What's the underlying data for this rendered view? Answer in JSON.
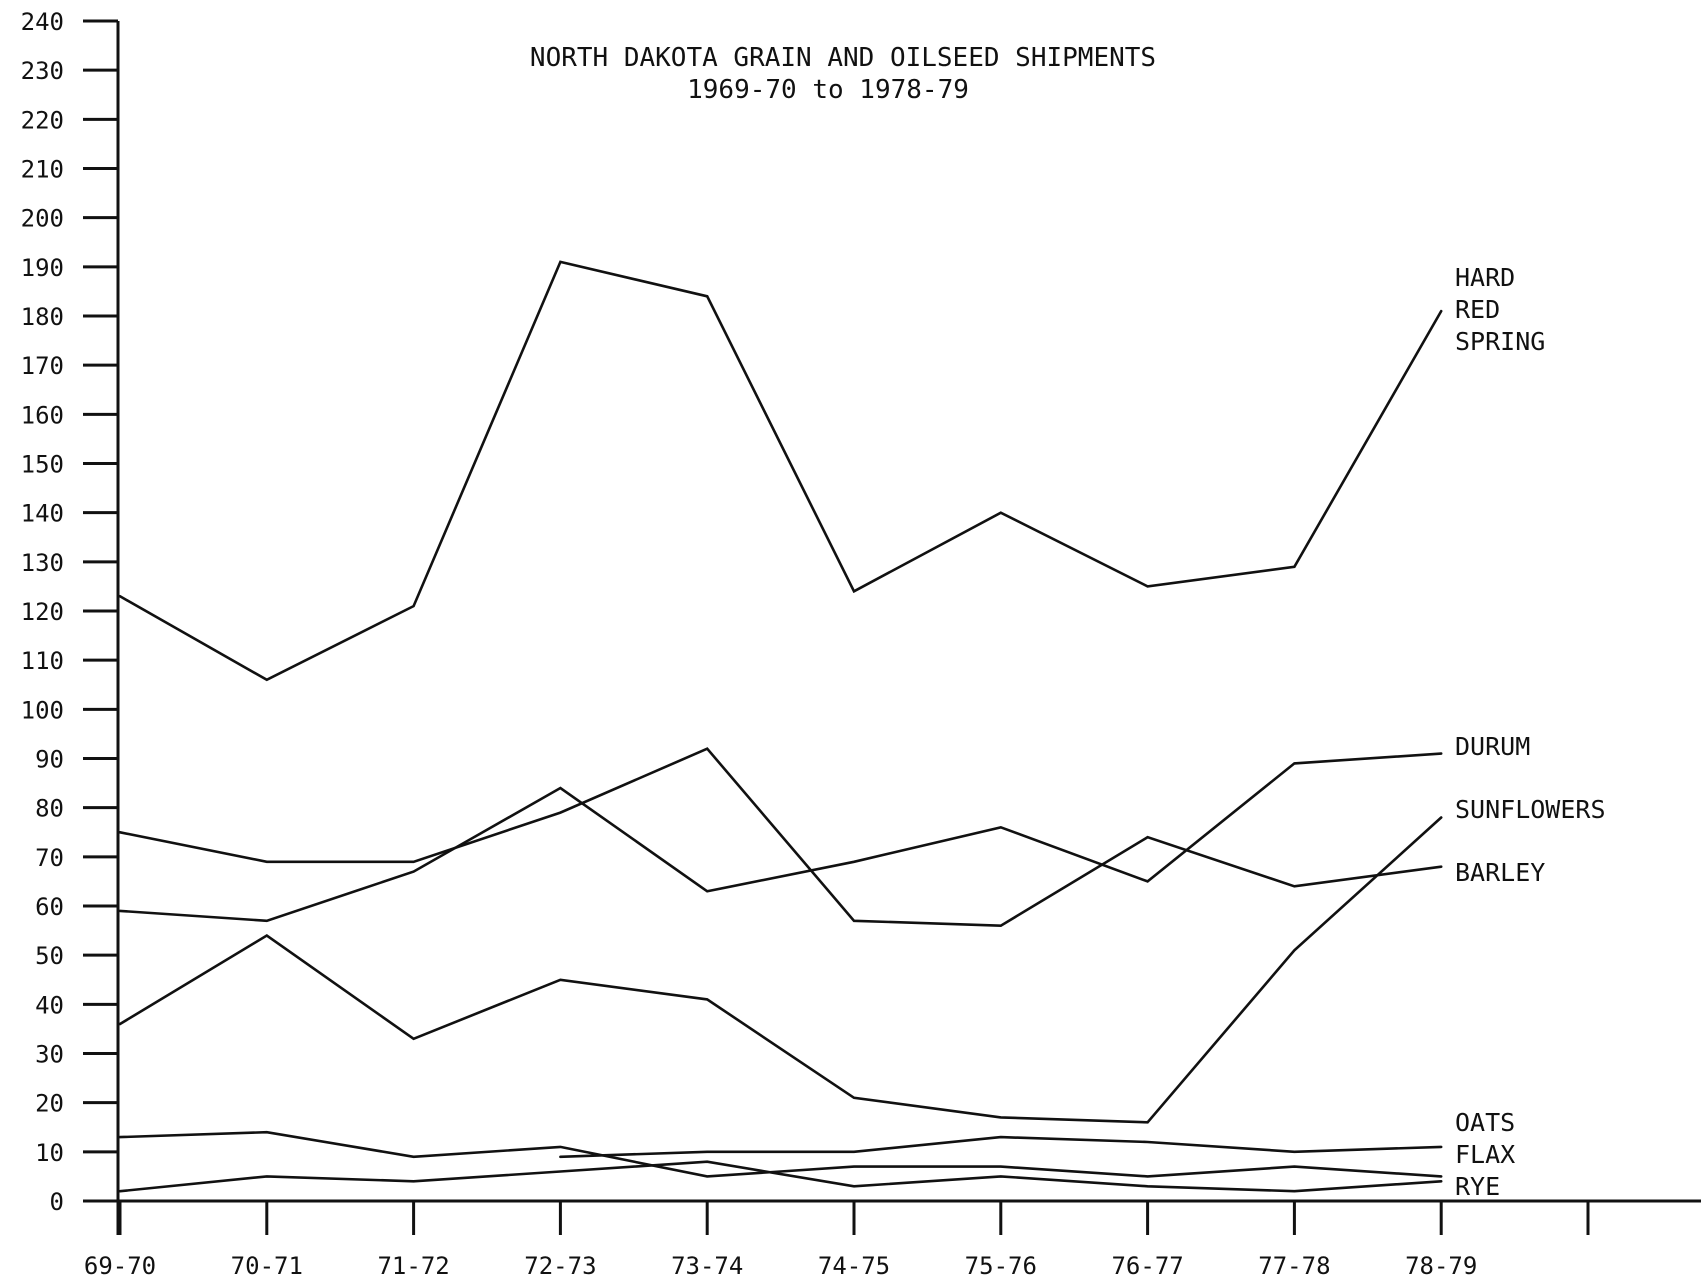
{
  "chart_data": {
    "type": "line",
    "title": "NORTH DAKOTA GRAIN AND OILSEED SHIPMENTS",
    "subtitle": "1969-70 to 1978-79",
    "xlabel": "",
    "ylabel": "",
    "ylim": [
      0,
      240
    ],
    "y_ticks": [
      0,
      10,
      20,
      30,
      40,
      50,
      60,
      70,
      80,
      90,
      100,
      110,
      120,
      130,
      140,
      150,
      160,
      170,
      180,
      190,
      200,
      210,
      220,
      230,
      240
    ],
    "categories": [
      "69-70",
      "70-71",
      "71-72",
      "72-73",
      "73-74",
      "74-75",
      "75-76",
      "76-77",
      "77-78",
      "78-79"
    ],
    "grid": false,
    "legend": "labels at right end of lines",
    "series": [
      {
        "name": "HARD RED SPRING",
        "label_lines": [
          "HARD",
          "RED",
          "SPRING"
        ],
        "values": [
          123,
          106,
          121,
          191,
          184,
          124,
          140,
          125,
          129,
          181
        ]
      },
      {
        "name": "DURUM",
        "label_lines": [
          "DURUM"
        ],
        "values": [
          59,
          57,
          67,
          84,
          63,
          69,
          76,
          65,
          89,
          91
        ]
      },
      {
        "name": "SUNFLOWERS",
        "label_lines": [
          "SUNFLOWERS"
        ],
        "values": [
          36,
          54,
          33,
          45,
          41,
          21,
          17,
          16,
          51,
          78
        ]
      },
      {
        "name": "BARLEY",
        "label_lines": [
          "BARLEY"
        ],
        "values": [
          75,
          69,
          69,
          79,
          92,
          57,
          56,
          74,
          64,
          68
        ]
      },
      {
        "name": "OATS",
        "label_lines": [
          "OATS"
        ],
        "values": [
          13,
          14,
          9,
          11,
          5,
          7,
          7,
          5,
          7,
          5
        ]
      },
      {
        "name": "FLAX",
        "label_lines": [
          "FLAX"
        ],
        "values": [
          null,
          null,
          null,
          9,
          10,
          10,
          13,
          12,
          10,
          11
        ]
      },
      {
        "name": "RYE",
        "label_lines": [
          "RYE"
        ],
        "values": [
          2,
          5,
          4,
          6,
          8,
          3,
          5,
          3,
          2,
          4
        ]
      }
    ]
  }
}
